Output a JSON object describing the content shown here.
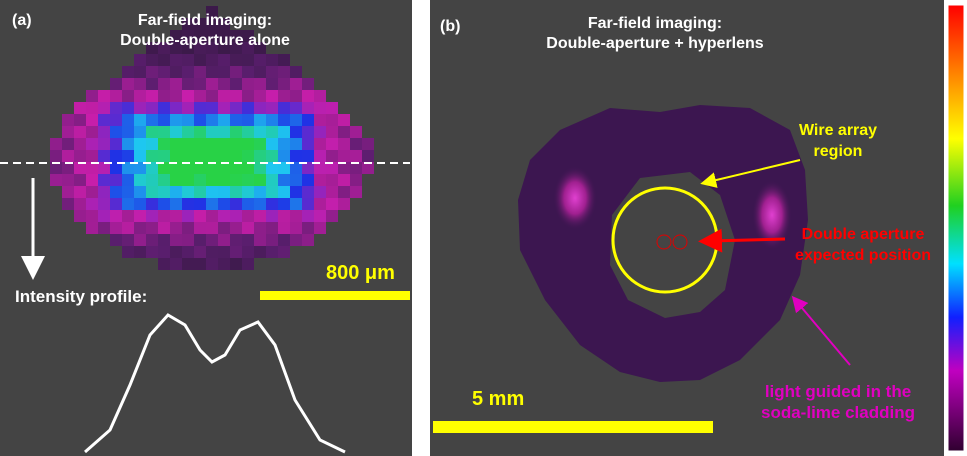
{
  "panel_a": {
    "label": "(a)",
    "title": [
      "Far-field imaging:",
      "Double-aperture alone"
    ],
    "scale_bar": "800 μm",
    "profile_label": "Intensity profile:"
  },
  "panel_b": {
    "label": "(b)",
    "title": [
      "Far-field imaging:",
      "Double-aperture + hyperlens"
    ],
    "wire_label": [
      "Wire array",
      "region"
    ],
    "aperture_label": [
      "Double aperture",
      "expected position"
    ],
    "cladding_label": [
      "light guided in the",
      "soda-lime cladding"
    ],
    "scale_bar": "5 mm"
  }
}
